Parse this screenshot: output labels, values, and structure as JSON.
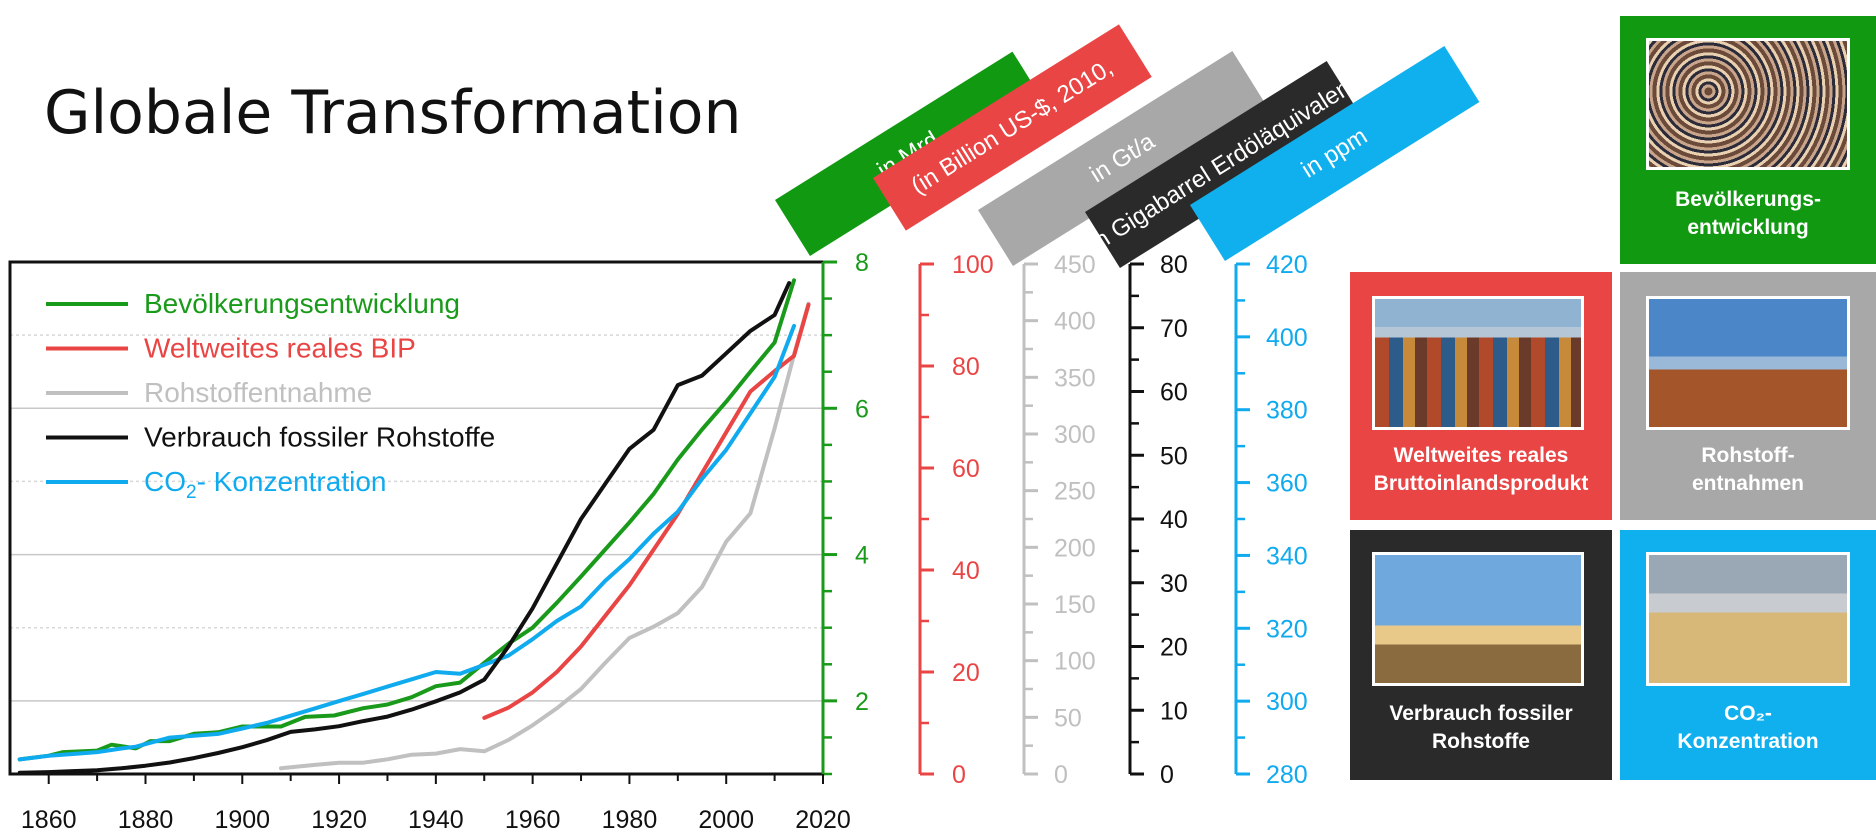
{
  "title": "Globale Transformation",
  "colors": {
    "population": "#1a9a1a",
    "gdp": "#ea4545",
    "resources": "#c0c0c0",
    "fossil": "#111111",
    "co2": "#10aaee"
  },
  "unit_tags": [
    {
      "label": "in Mrd.",
      "color": "#119911"
    },
    {
      "label": "(in Billion US-$, 2010,",
      "color": "#ea4545"
    },
    {
      "label": "in Gt/a",
      "color": "#a8a8a8"
    },
    {
      "label": "in Gigabarrel Erdöläquivalent",
      "color": "#2a2a2a"
    },
    {
      "label": "in ppm",
      "color": "#10b0ee"
    }
  ],
  "tiles": [
    {
      "id": "population",
      "caption_1": "Bevölkerungs-",
      "caption_2": "entwicklung",
      "color": "#119911",
      "photo": "crowd"
    },
    {
      "id": "gdp",
      "caption_1": "Weltweites reales",
      "caption_2": "Bruttoinlandsprodukt",
      "color": "#ea4545",
      "photo": "containers"
    },
    {
      "id": "resources",
      "caption_1": "Rohstoff-",
      "caption_2": "entnahmen",
      "color": "#a8a8a8",
      "photo": "excavator"
    },
    {
      "id": "fossil",
      "caption_1": "Verbrauch fossiler",
      "caption_2": "Rohstoffe",
      "color": "#2a2a2a",
      "photo": "oil-pump"
    },
    {
      "id": "co2",
      "caption_1": "CO₂-",
      "caption_2": "Konzentration",
      "color": "#10b0ee",
      "photo": "cooling-towers"
    }
  ],
  "chart_data": {
    "type": "line",
    "x_ticks": [
      1860,
      1880,
      1900,
      1920,
      1940,
      1960,
      1980,
      2000,
      2020
    ],
    "xlim": [
      1852,
      2020
    ],
    "grid": true,
    "legend_placement": "top-left",
    "axes": [
      {
        "id": "population",
        "ylim": [
          1,
          8
        ],
        "ticks": [
          2,
          4,
          6,
          8
        ],
        "minor_step": 0.5,
        "color": "#1a9a1a"
      },
      {
        "id": "gdp",
        "ylim": [
          0,
          100
        ],
        "ticks": [
          0,
          20,
          40,
          60,
          80,
          100
        ],
        "minor_step": 10,
        "color": "#ea4545"
      },
      {
        "id": "resources",
        "ylim": [
          0,
          450
        ],
        "ticks": [
          0,
          50,
          100,
          150,
          200,
          250,
          300,
          350,
          400,
          450
        ],
        "minor_step": 25,
        "color": "#c0c0c0"
      },
      {
        "id": "fossil",
        "ylim": [
          0,
          80
        ],
        "ticks": [
          0,
          10,
          20,
          30,
          40,
          50,
          60,
          70,
          80
        ],
        "minor_step": 5,
        "color": "#111111"
      },
      {
        "id": "co2",
        "ylim": [
          280,
          420
        ],
        "ticks": [
          280,
          300,
          320,
          340,
          360,
          380,
          400,
          420
        ],
        "minor_step": 10,
        "color": "#10aaee"
      }
    ],
    "series": [
      {
        "id": "population",
        "name": "Bevölkerungsentwicklung",
        "axis": "population",
        "color": "#1a9a1a",
        "x": [
          1854,
          1860,
          1863,
          1870,
          1873,
          1878,
          1881,
          1885,
          1890,
          1895,
          1900,
          1908,
          1913,
          1919,
          1925,
          1930,
          1935,
          1940,
          1945,
          1950,
          1955,
          1960,
          1965,
          1970,
          1975,
          1980,
          1985,
          1990,
          1995,
          2000,
          2005,
          2010,
          2014
        ],
        "y": [
          1.2,
          1.25,
          1.3,
          1.32,
          1.4,
          1.35,
          1.45,
          1.45,
          1.55,
          1.57,
          1.65,
          1.65,
          1.78,
          1.8,
          1.9,
          1.95,
          2.05,
          2.2,
          2.25,
          2.52,
          2.78,
          3.0,
          3.34,
          3.7,
          4.07,
          4.44,
          4.83,
          5.3,
          5.71,
          6.09,
          6.5,
          6.9,
          7.75
        ]
      },
      {
        "id": "gdp",
        "name": "Weltweites reales BIP",
        "axis": "gdp",
        "color": "#ea4545",
        "x": [
          1950,
          1955,
          1960,
          1965,
          1970,
          1975,
          1980,
          1985,
          1990,
          1995,
          2000,
          2005,
          2010,
          2014,
          2017
        ],
        "y": [
          11,
          13,
          16,
          20,
          25,
          31,
          37,
          44,
          51,
          59,
          67,
          75,
          79,
          82,
          92
        ]
      },
      {
        "id": "resources",
        "name": "Rohstoffentnahme",
        "axis": "resources",
        "color": "#c0c0c0",
        "x": [
          1908,
          1915,
          1920,
          1925,
          1930,
          1935,
          1940,
          1945,
          1950,
          1955,
          1960,
          1965,
          1970,
          1975,
          1980,
          1985,
          1990,
          1995,
          2000,
          2005,
          2010,
          2014,
          2017
        ],
        "y": [
          5,
          8,
          10,
          10,
          13,
          17,
          18,
          22,
          20,
          30,
          43,
          58,
          75,
          98,
          120,
          130,
          142,
          165,
          205,
          230,
          305,
          370,
          415
        ]
      },
      {
        "id": "fossil",
        "name": "Verbrauch fossiler Rohstoffe",
        "axis": "fossil",
        "color": "#111111",
        "x": [
          1854,
          1860,
          1865,
          1870,
          1875,
          1880,
          1885,
          1890,
          1895,
          1900,
          1905,
          1910,
          1915,
          1920,
          1925,
          1930,
          1935,
          1940,
          1945,
          1950,
          1955,
          1960,
          1965,
          1970,
          1975,
          1980,
          1985,
          1990,
          1995,
          2000,
          2005,
          2010,
          2013
        ],
        "y": [
          0.2,
          0.3,
          0.45,
          0.6,
          0.9,
          1.3,
          1.8,
          2.5,
          3.3,
          4.2,
          5.3,
          6.6,
          7.0,
          7.5,
          8.3,
          9.0,
          10.1,
          11.4,
          12.8,
          14.8,
          20.0,
          26.0,
          33.0,
          40.0,
          45.5,
          51.0,
          54.0,
          61.0,
          62.5,
          66.0,
          69.5,
          72.0,
          77.0
        ]
      },
      {
        "id": "co2",
        "name": "CO₂- Konzentration",
        "axis": "co2",
        "color": "#10aaee",
        "x": [
          1854,
          1860,
          1865,
          1870,
          1875,
          1878,
          1885,
          1890,
          1895,
          1900,
          1905,
          1910,
          1915,
          1920,
          1925,
          1930,
          1935,
          1940,
          1945,
          1950,
          1955,
          1960,
          1965,
          1970,
          1975,
          1980,
          1985,
          1990,
          1995,
          2000,
          2005,
          2010,
          2014
        ],
        "y": [
          284,
          285,
          285.5,
          286,
          287,
          287.5,
          290,
          290.5,
          291,
          292.5,
          294,
          296,
          298,
          300,
          302,
          304,
          306,
          308,
          307.5,
          310,
          312.5,
          317,
          322,
          326,
          333,
          339,
          346,
          352,
          361,
          369,
          379,
          389,
          403
        ]
      }
    ]
  }
}
